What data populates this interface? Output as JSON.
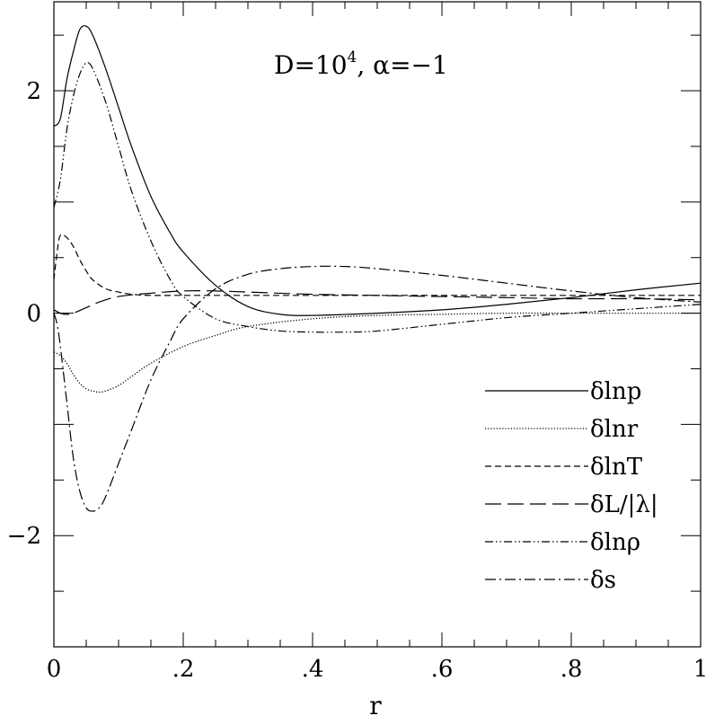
{
  "chart_data": {
    "type": "line",
    "title": "D=10⁴,  α=−1",
    "title_parts": {
      "main": "D=10",
      "sup": "4",
      "rest": ",  α=−1"
    },
    "xlabel": "r",
    "ylabel": "",
    "xlim": [
      0,
      1
    ],
    "ylim": [
      -3,
      2.8
    ],
    "grid": false,
    "legend_position": "lower-right",
    "x_ticks": [
      {
        "value": 0,
        "label": "0"
      },
      {
        "value": 0.2,
        "label": ".2"
      },
      {
        "value": 0.4,
        "label": ".4"
      },
      {
        "value": 0.6,
        "label": ".6"
      },
      {
        "value": 0.8,
        "label": ".8"
      },
      {
        "value": 1,
        "label": "1"
      }
    ],
    "y_ticks": [
      {
        "value": -2,
        "label": "−2"
      },
      {
        "value": 0,
        "label": "0"
      },
      {
        "value": 2,
        "label": "2"
      }
    ],
    "series": [
      {
        "name": "δlnp",
        "dash": "solid",
        "x": [
          0,
          0.01,
          0.02,
          0.03,
          0.04,
          0.05,
          0.06,
          0.08,
          0.1,
          0.12,
          0.15,
          0.18,
          0.2,
          0.25,
          0.3,
          0.35,
          0.4,
          0.5,
          0.6,
          0.7,
          0.8,
          0.9,
          1.0
        ],
        "y": [
          1.68,
          1.75,
          2.1,
          2.35,
          2.55,
          2.58,
          2.5,
          2.2,
          1.85,
          1.5,
          1.05,
          0.72,
          0.55,
          0.25,
          0.06,
          -0.01,
          -0.02,
          0.0,
          0.03,
          0.08,
          0.14,
          0.21,
          0.27
        ]
      },
      {
        "name": "δlnr",
        "dash": "dotted",
        "x": [
          0,
          0.01,
          0.02,
          0.03,
          0.04,
          0.05,
          0.06,
          0.07,
          0.08,
          0.1,
          0.12,
          0.15,
          0.2,
          0.25,
          0.3,
          0.4,
          0.5,
          0.6,
          0.7,
          0.8,
          1.0
        ],
        "y": [
          -0.35,
          -0.38,
          -0.45,
          -0.55,
          -0.63,
          -0.68,
          -0.7,
          -0.71,
          -0.7,
          -0.65,
          -0.57,
          -0.45,
          -0.3,
          -0.2,
          -0.12,
          -0.05,
          -0.02,
          -0.01,
          0.0,
          0.0,
          0.0
        ]
      },
      {
        "name": "δlnT",
        "dash": "short-dash",
        "x": [
          0,
          0.005,
          0.01,
          0.02,
          0.03,
          0.04,
          0.05,
          0.06,
          0.08,
          0.1,
          0.12,
          0.15,
          0.2,
          0.3,
          0.4,
          0.6,
          0.8,
          1.0
        ],
        "y": [
          0.3,
          0.55,
          0.7,
          0.68,
          0.6,
          0.48,
          0.38,
          0.3,
          0.22,
          0.19,
          0.17,
          0.16,
          0.16,
          0.16,
          0.16,
          0.16,
          0.16,
          0.16
        ]
      },
      {
        "name": "δL/|λ|",
        "dash": "long-dash",
        "x": [
          0,
          0.01,
          0.02,
          0.03,
          0.05,
          0.07,
          0.1,
          0.15,
          0.2,
          0.25,
          0.3,
          0.4,
          0.5,
          0.6,
          0.7,
          0.8,
          0.9,
          1.0
        ],
        "y": [
          0.03,
          0.0,
          -0.01,
          0.0,
          0.05,
          0.1,
          0.15,
          0.18,
          0.2,
          0.2,
          0.19,
          0.17,
          0.16,
          0.15,
          0.14,
          0.13,
          0.13,
          0.12
        ]
      },
      {
        "name": "δlnρ",
        "dash": "dash-dot-dot",
        "x": [
          0,
          0.01,
          0.02,
          0.03,
          0.04,
          0.05,
          0.06,
          0.08,
          0.1,
          0.12,
          0.15,
          0.18,
          0.2,
          0.25,
          0.3,
          0.35,
          0.4,
          0.45,
          0.5,
          0.6,
          0.7,
          0.8,
          0.9,
          1.0
        ],
        "y": [
          0.95,
          1.2,
          1.65,
          1.95,
          2.15,
          2.25,
          2.2,
          1.9,
          1.5,
          1.1,
          0.65,
          0.3,
          0.15,
          -0.05,
          -0.12,
          -0.16,
          -0.17,
          -0.17,
          -0.16,
          -0.1,
          -0.04,
          0.0,
          0.04,
          0.08
        ]
      },
      {
        "name": "δs",
        "dash": "dash-dot",
        "x": [
          0,
          0.005,
          0.01,
          0.02,
          0.03,
          0.04,
          0.05,
          0.06,
          0.07,
          0.08,
          0.1,
          0.12,
          0.15,
          0.18,
          0.2,
          0.25,
          0.3,
          0.35,
          0.4,
          0.45,
          0.5,
          0.6,
          0.7,
          0.8,
          0.9,
          1.0
        ],
        "y": [
          0.0,
          -0.1,
          -0.3,
          -0.8,
          -1.3,
          -1.6,
          -1.75,
          -1.78,
          -1.75,
          -1.65,
          -1.35,
          -1.05,
          -0.6,
          -0.25,
          -0.05,
          0.22,
          0.35,
          0.4,
          0.42,
          0.42,
          0.4,
          0.34,
          0.27,
          0.2,
          0.14,
          0.1
        ]
      }
    ]
  }
}
